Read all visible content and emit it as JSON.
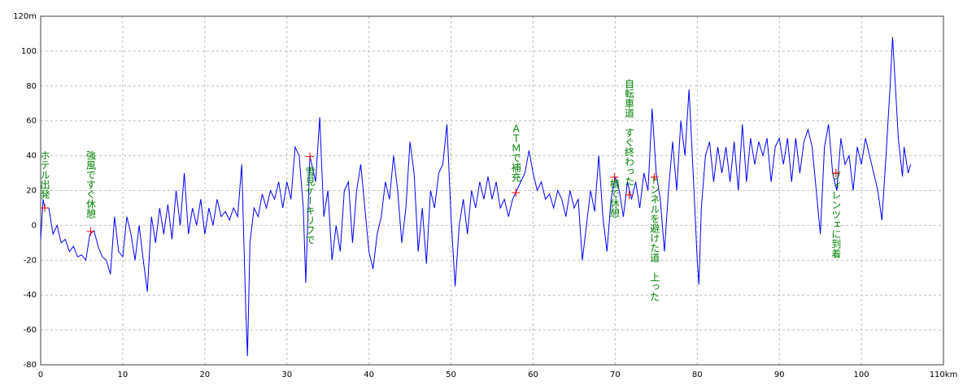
{
  "chart_data": {
    "type": "line",
    "color": "#0000ff",
    "annotation_color": "#008000",
    "marker_color": "#ff0000",
    "grid": true,
    "xlim": [
      0,
      110
    ],
    "xticks": [
      0,
      10,
      20,
      30,
      40,
      50,
      60,
      70,
      80,
      90,
      100,
      {
        "value": 110,
        "label": "110km"
      }
    ],
    "ylim": [
      -80,
      120
    ],
    "yticks": [
      -80,
      -60,
      -40,
      -20,
      0,
      20,
      40,
      60,
      80,
      100,
      {
        "value": 120,
        "label": "120m"
      }
    ],
    "x": [
      0,
      0.3,
      0.5,
      1,
      1.5,
      2,
      2.5,
      3,
      3.5,
      4,
      4.5,
      5,
      5.5,
      6,
      6.5,
      7,
      7.5,
      8,
      8.5,
      9,
      9.5,
      10,
      10.5,
      11,
      11.5,
      12,
      12.5,
      13,
      13.5,
      14,
      14.5,
      15,
      15.5,
      16,
      16.5,
      17,
      17.5,
      18,
      18.5,
      19,
      19.5,
      20,
      20.5,
      21,
      21.5,
      22,
      22.5,
      23,
      23.5,
      24,
      24.5,
      25,
      25.2,
      25.5,
      26,
      26.5,
      27,
      27.5,
      28,
      28.5,
      29,
      29.5,
      30,
      30.5,
      31,
      31.5,
      32,
      32.3,
      32.8,
      33.5,
      34,
      34.5,
      35,
      35.5,
      36,
      36.5,
      37,
      37.5,
      38,
      38.5,
      39,
      39.5,
      40,
      40.5,
      41,
      41.5,
      42,
      42.5,
      43,
      43.5,
      44,
      44.5,
      45,
      45.5,
      46,
      46.5,
      47,
      47.5,
      48,
      48.5,
      49,
      49.5,
      50,
      50.5,
      51,
      51.5,
      52,
      52.5,
      53,
      53.5,
      54,
      54.5,
      55,
      55.5,
      56,
      56.5,
      57,
      57.5,
      58,
      58.5,
      59,
      59.5,
      60,
      60.5,
      61,
      61.5,
      62,
      62.5,
      63,
      63.5,
      64,
      64.5,
      65,
      65.5,
      66,
      66.5,
      67,
      67.5,
      68,
      68.5,
      69,
      69.5,
      70,
      70.5,
      71,
      71.5,
      72,
      72.5,
      73,
      73.5,
      74,
      74.5,
      75,
      75.5,
      76,
      76.5,
      77,
      77.5,
      78,
      78.5,
      79,
      79.5,
      80,
      80.2,
      80.5,
      81,
      81.5,
      82,
      82.5,
      83,
      83.5,
      84,
      84.5,
      85,
      85.5,
      86,
      86.5,
      87,
      87.5,
      88,
      88.5,
      89,
      89.5,
      90,
      90.5,
      91,
      91.5,
      92,
      92.5,
      93,
      93.5,
      94,
      94.5,
      95,
      95.5,
      96,
      96.5,
      97,
      97.5,
      98,
      98.5,
      99,
      99.5,
      100,
      100.5,
      101,
      101.5,
      102,
      102.5,
      103,
      103.5,
      103.8,
      104.2,
      104.5,
      105,
      105.2,
      105.7,
      106
    ],
    "values": [
      -8,
      15,
      10,
      10,
      -5,
      0,
      -10,
      -8,
      -15,
      -12,
      -18,
      -17,
      -20,
      -5,
      -3,
      -12,
      -18,
      -20,
      -28,
      5,
      -15,
      -18,
      5,
      -5,
      -20,
      0,
      -20,
      -38,
      5,
      -10,
      10,
      -5,
      12,
      -8,
      20,
      0,
      30,
      -5,
      10,
      0,
      15,
      -5,
      10,
      0,
      15,
      5,
      8,
      3,
      10,
      5,
      35,
      -50,
      -75,
      -10,
      10,
      5,
      18,
      10,
      20,
      15,
      25,
      10,
      25,
      15,
      45,
      40,
      10,
      -33,
      40,
      25,
      62,
      5,
      20,
      -20,
      0,
      -15,
      20,
      25,
      -10,
      20,
      35,
      10,
      -15,
      -25,
      -5,
      5,
      25,
      15,
      40,
      20,
      -10,
      10,
      48,
      30,
      -15,
      10,
      -22,
      20,
      10,
      30,
      35,
      58,
      5,
      -35,
      0,
      15,
      -5,
      20,
      10,
      25,
      15,
      28,
      15,
      25,
      10,
      15,
      5,
      15,
      20,
      25,
      30,
      43,
      30,
      20,
      25,
      15,
      18,
      10,
      20,
      15,
      5,
      20,
      10,
      15,
      -20,
      0,
      20,
      8,
      40,
      5,
      -15,
      15,
      28,
      20,
      5,
      25,
      15,
      25,
      10,
      30,
      20,
      67,
      30,
      15,
      -15,
      20,
      48,
      20,
      60,
      40,
      78,
      30,
      -20,
      -34,
      10,
      40,
      48,
      25,
      45,
      30,
      45,
      25,
      48,
      20,
      58,
      25,
      50,
      35,
      48,
      40,
      50,
      25,
      45,
      50,
      35,
      50,
      25,
      50,
      30,
      48,
      55,
      45,
      20,
      -5,
      45,
      58,
      30,
      20,
      50,
      35,
      40,
      20,
      45,
      35,
      50,
      40,
      30,
      20,
      3,
      40,
      80,
      108,
      75,
      50,
      28,
      45,
      30,
      35
    ],
    "annotations": [
      {
        "text": "ホテル出発",
        "x": 0.5,
        "y": 10
      },
      {
        "text": "強風ですぐ休憩",
        "x": 6.1,
        "y": -3.5
      },
      {
        "text": "雪見ケーキリフで",
        "x": 32.8,
        "y": 39.5
      },
      {
        "text": "ＡＴＭで補充",
        "x": 57.9,
        "y": 18.8
      },
      {
        "text": "自転車道　すぐ終わった",
        "x": 71.7,
        "y": 17.5
      },
      {
        "text": "橋で休憩",
        "x": 69.9,
        "y": 27.7
      },
      {
        "text": "トンネルを避けた道　上った",
        "x": 74.8,
        "y": 27.7
      },
      {
        "text": "ヴィレンツェに到着",
        "x": 96.9,
        "y": 30
      }
    ]
  }
}
